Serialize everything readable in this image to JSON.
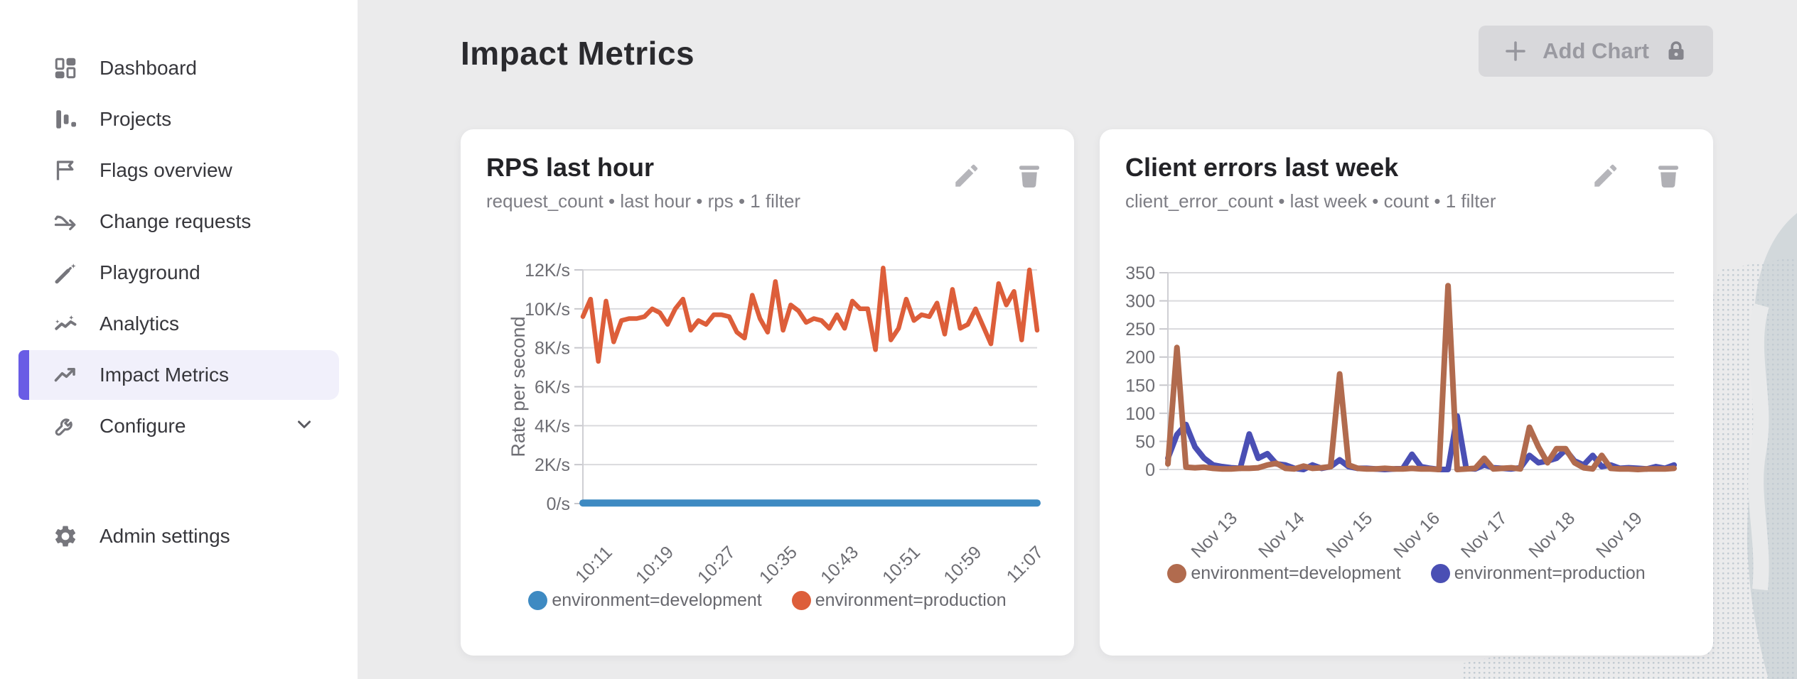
{
  "appearance": {
    "accent": "#695ce5",
    "page_bg": "#ebebec",
    "sidebar_bg": "#ffffff",
    "disabled_button_bg": "#d8d8db"
  },
  "sidebar": {
    "items": [
      {
        "label": "Dashboard",
        "icon": "dashboard-icon",
        "selected": false
      },
      {
        "label": "Projects",
        "icon": "bar-chart-icon",
        "selected": false
      },
      {
        "label": "Flags overview",
        "icon": "flag-icon",
        "selected": false
      },
      {
        "label": "Change requests",
        "icon": "merge-arrows-icon",
        "selected": false
      },
      {
        "label": "Playground",
        "icon": "magic-wand-icon",
        "selected": false
      },
      {
        "label": "Analytics",
        "icon": "sparkle-trend-icon",
        "selected": false
      },
      {
        "label": "Impact Metrics",
        "icon": "trend-up-icon",
        "selected": true
      },
      {
        "label": "Configure",
        "icon": "wrench-icon",
        "selected": false,
        "has_chevron": true
      }
    ],
    "admin_settings": {
      "label": "Admin settings",
      "icon": "gear-icon"
    }
  },
  "header": {
    "title": "Impact Metrics",
    "add_chart_label": "Add Chart",
    "add_chart_locked": true
  },
  "chart_data": [
    {
      "type": "line",
      "title": "RPS last hour",
      "subtitle": "request_count • last hour • rps • 1 filter",
      "ylabel": "Rate per second",
      "ylim": [
        0,
        12000
      ],
      "grid": true,
      "legend_position": "bottom",
      "ytick_values": [
        0,
        2000,
        4000,
        6000,
        8000,
        10000,
        12000
      ],
      "ytick_labels": [
        "0/s",
        "2K/s",
        "4K/s",
        "6K/s",
        "8K/s",
        "10K/s",
        "12K/s"
      ],
      "xticks": [
        {
          "label": "10:11",
          "pos": 0.051
        },
        {
          "label": "10:19",
          "pos": 0.186
        },
        {
          "label": "10:27",
          "pos": 0.322
        },
        {
          "label": "10:35",
          "pos": 0.458
        },
        {
          "label": "10:43",
          "pos": 0.593
        },
        {
          "label": "10:51",
          "pos": 0.729
        },
        {
          "label": "10:59",
          "pos": 0.864
        },
        {
          "label": "11:07",
          "pos": 1.0
        }
      ],
      "series": [
        {
          "name": "environment=development",
          "color": "#3e8ac2",
          "width": 10,
          "z": 1,
          "values": [
            30,
            30
          ]
        },
        {
          "name": "environment=production",
          "color": "#dd5e3a",
          "width": 6.5,
          "z": 2,
          "values": [
            9600,
            10500,
            7300,
            10400,
            8300,
            9400,
            9500,
            9500,
            9600,
            10000,
            9800,
            9200,
            10000,
            10500,
            8900,
            9400,
            9200,
            9700,
            9700,
            9600,
            8800,
            8500,
            10700,
            9500,
            8800,
            11400,
            8900,
            10200,
            9900,
            9300,
            9500,
            9400,
            9000,
            9700,
            9000,
            10400,
            10000,
            10000,
            7900,
            12100,
            8400,
            9000,
            10500,
            9400,
            9700,
            9600,
            10300,
            8700,
            11000,
            9000,
            9200,
            10000,
            9100,
            8200,
            11300,
            10200,
            10900,
            8400,
            12000,
            8900
          ]
        }
      ]
    },
    {
      "type": "line",
      "title": "Client errors last week",
      "subtitle": "client_error_count • last week • count • 1 filter",
      "ylabel": "",
      "ylim": [
        0,
        350
      ],
      "grid": true,
      "legend_position": "bottom",
      "ytick_values": [
        0,
        50,
        100,
        150,
        200,
        250,
        300,
        350
      ],
      "ytick_labels": [
        "0",
        "50",
        "100",
        "150",
        "200",
        "250",
        "300",
        "350"
      ],
      "xticks": [
        {
          "label": "Nov 13",
          "pos": 0.125
        },
        {
          "label": "Nov 14",
          "pos": 0.258
        },
        {
          "label": "Nov 15",
          "pos": 0.392
        },
        {
          "label": "Nov 16",
          "pos": 0.525
        },
        {
          "label": "Nov 17",
          "pos": 0.658
        },
        {
          "label": "Nov 18",
          "pos": 0.792
        },
        {
          "label": "Nov 19",
          "pos": 0.925
        }
      ],
      "series": [
        {
          "name": "environment=development",
          "color": "#b16b4e",
          "width": 8,
          "z": 2,
          "values": [
            10,
            217,
            4,
            3,
            4,
            2,
            1,
            1,
            2,
            2,
            3,
            8,
            11,
            2,
            1,
            6,
            2,
            3,
            5,
            170,
            8,
            2,
            1,
            1,
            2,
            1,
            1,
            2,
            1,
            1,
            0,
            327,
            0,
            1,
            2,
            20,
            1,
            2,
            3,
            1,
            75,
            40,
            12,
            37,
            37,
            12,
            3,
            1,
            25,
            2,
            1,
            1,
            0,
            1,
            1,
            1,
            2
          ]
        },
        {
          "name": "environment=production",
          "color": "#4a4fb4",
          "width": 8,
          "z": 1,
          "values": [
            20,
            62,
            80,
            40,
            20,
            8,
            5,
            3,
            2,
            63,
            20,
            28,
            10,
            8,
            2,
            0,
            8,
            2,
            5,
            17,
            5,
            2,
            2,
            1,
            0,
            1,
            2,
            27,
            5,
            2,
            0,
            0,
            95,
            2,
            1,
            8,
            3,
            2,
            1,
            3,
            25,
            12,
            15,
            20,
            35,
            15,
            8,
            25,
            5,
            8,
            2,
            3,
            2,
            1,
            5,
            2,
            8
          ]
        }
      ]
    }
  ]
}
